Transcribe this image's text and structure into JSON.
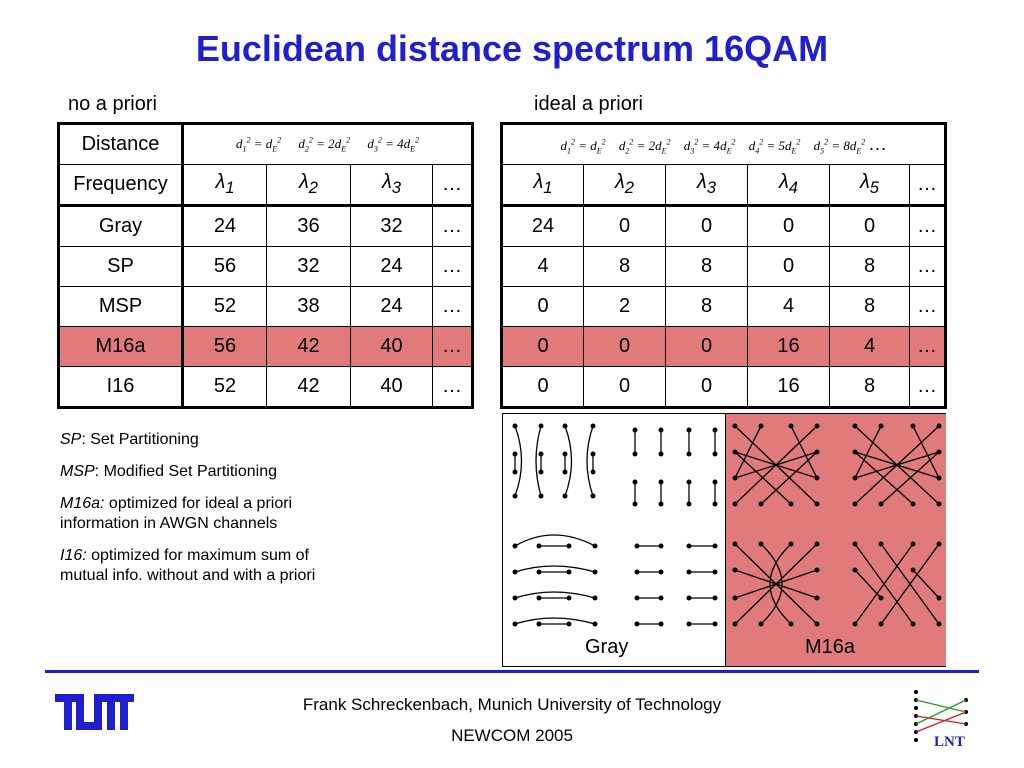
{
  "title": "Euclidean distance spectrum 16QAM",
  "left_heading": "no a priori",
  "right_heading": "ideal a priori",
  "row_headers": [
    "Distance",
    "Frequency",
    "Gray",
    "SP",
    "MSP",
    "M16a",
    "I16"
  ],
  "left_table": {
    "distance": [
      "d₁² = d_E²",
      "d₂² = 2d_E²",
      "d₃² = 4d_E²",
      ""
    ],
    "frequency": [
      "λ1",
      "λ2",
      "λ3",
      "…"
    ],
    "rows": [
      [
        "24",
        "36",
        "32",
        "…"
      ],
      [
        "56",
        "32",
        "24",
        "…"
      ],
      [
        "52",
        "38",
        "24",
        "…"
      ],
      [
        "56",
        "42",
        "40",
        "…"
      ],
      [
        "52",
        "42",
        "40",
        "…"
      ]
    ]
  },
  "right_table": {
    "distance": [
      "d₁² = d_E²",
      "d₂² = 2d_E²",
      "d₃² = 4d_E²",
      "d₄² = 5d_E²",
      "d₅² = 8d_E²",
      "…"
    ],
    "frequency": [
      "λ1",
      "λ2",
      "λ3",
      "λ4",
      "λ5",
      "…"
    ],
    "rows": [
      [
        "24",
        "0",
        "0",
        "0",
        "0",
        "…"
      ],
      [
        "4",
        "8",
        "8",
        "0",
        "8",
        "…"
      ],
      [
        "0",
        "2",
        "8",
        "4",
        "8",
        "…"
      ],
      [
        "0",
        "0",
        "0",
        "16",
        "4",
        "…"
      ],
      [
        "0",
        "0",
        "0",
        "16",
        "8",
        "…"
      ]
    ]
  },
  "legend": [
    {
      "abbr": "SP",
      "text": ": Set Partitioning"
    },
    {
      "abbr": "MSP",
      "text": ": Modified Set Partitioning"
    },
    {
      "abbr": "M16a:",
      "text": " optimized for ideal a priori information in AWGN channels"
    },
    {
      "abbr": "I16:",
      "text": " optimized for maximum sum of mutual info. without and with a priori"
    }
  ],
  "map_labels": {
    "left": "Gray",
    "right": "M16a"
  },
  "footer": {
    "line1": "Frank Schreckenbach, Munich University of Technology",
    "line2": "NEWCOM 2005"
  },
  "logos": {
    "left": "TUM",
    "right": "LNT"
  },
  "colors": {
    "title": "#1f1fd0",
    "highlight": "#e17b7b",
    "rule": "#1f1fd0"
  }
}
